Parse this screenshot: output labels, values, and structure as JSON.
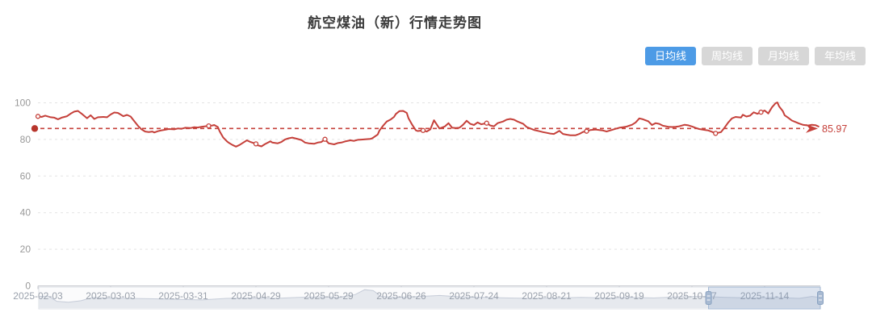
{
  "title": "航空煤油（新）行情走势图",
  "toolbar": {
    "buttons": [
      {
        "label": "日均线",
        "active": true
      },
      {
        "label": "周均线",
        "active": false
      },
      {
        "label": "月均线",
        "active": false
      },
      {
        "label": "年均线",
        "active": false
      }
    ]
  },
  "colors": {
    "series_red": "#c5403a",
    "markline_dot_red": "#b7352c",
    "active_button_blue": "#4d9be6",
    "inactive_button_gray": "#d7d7d7",
    "button_text": "#ffffff",
    "axis_text_gray": "#999999",
    "x_label_gray": "#9aa1ac",
    "grid_line": "#e3e3e3",
    "axis_line": "#c4c6cc",
    "slider_track_fill": "#fbfbfc",
    "slider_track_border": "#dde0e6",
    "slider_shadow_fill": "#e6e9ee",
    "slider_shadow_line": "#c6ccd8",
    "slider_window_fill": "rgba(130,160,200,0.25)",
    "slider_window_border": "#a0b6d2",
    "slider_handle_fill": "#a8bad2",
    "slider_handle_border": "#8aa2c0"
  },
  "chart_data": {
    "type": "line",
    "title": "航空煤油（新）行情走势图",
    "series_name": "日均线",
    "y_ticks": [
      0,
      20,
      40,
      60,
      80,
      100
    ],
    "y_range": [
      0,
      100
    ],
    "grid": true,
    "x_tick_labels": [
      "2025-02-03",
      "2025-03-03",
      "2025-03-31",
      "2025-04-29",
      "2025-05-29",
      "2025-06-26",
      "2025-07-24",
      "2025-08-21",
      "2025-09-19",
      "2025-10-17",
      "2025-11-14"
    ],
    "x_tick_index": [
      0,
      20,
      40,
      60,
      80,
      100,
      120,
      140,
      160,
      180,
      200
    ],
    "x_unit": "trading-day index from 2025-02-03",
    "markline": {
      "value": 85.97,
      "label": "85.97"
    },
    "points": [
      [
        0,
        92.6
      ],
      [
        1,
        92.3
      ],
      [
        2,
        93.0
      ],
      [
        3.5,
        92.1
      ],
      [
        4.5,
        91.9
      ],
      [
        5.5,
        91.0
      ],
      [
        6.5,
        91.9
      ],
      [
        8,
        92.7
      ],
      [
        9,
        94.1
      ],
      [
        10,
        95.2
      ],
      [
        11,
        95.6
      ],
      [
        12,
        94.1
      ],
      [
        13.5,
        91.6
      ],
      [
        14.5,
        93.2
      ],
      [
        15.5,
        91.2
      ],
      [
        16.5,
        92.1
      ],
      [
        18,
        92.3
      ],
      [
        19,
        92.1
      ],
      [
        20,
        93.6
      ],
      [
        21,
        94.7
      ],
      [
        22,
        94.5
      ],
      [
        23.5,
        92.7
      ],
      [
        24.5,
        93.4
      ],
      [
        25.5,
        92.5
      ],
      [
        26.5,
        90.0
      ],
      [
        27.5,
        87.5
      ],
      [
        28.5,
        85.5
      ],
      [
        29.5,
        84.3
      ],
      [
        30.5,
        84.0
      ],
      [
        31.5,
        84.3
      ],
      [
        32,
        83.8
      ],
      [
        33,
        84.5
      ],
      [
        34,
        85.0
      ],
      [
        35,
        85.3
      ],
      [
        36,
        85.7
      ],
      [
        37.5,
        85.5
      ],
      [
        38.5,
        86.0
      ],
      [
        39.5,
        85.8
      ],
      [
        40.5,
        86.4
      ],
      [
        42,
        86.2
      ],
      [
        43,
        86.7
      ],
      [
        44,
        86.5
      ],
      [
        45,
        86.9
      ],
      [
        46,
        87.2
      ],
      [
        47,
        87.4
      ],
      [
        48,
        87.6
      ],
      [
        48.5,
        87.9
      ],
      [
        49.5,
        86.8
      ],
      [
        50,
        84.5
      ],
      [
        51,
        81.0
      ],
      [
        52,
        79.0
      ],
      [
        52.5,
        78.2
      ],
      [
        53.5,
        77.0
      ],
      [
        54.5,
        76.1
      ],
      [
        55.5,
        77.0
      ],
      [
        56.5,
        78.3
      ],
      [
        57.5,
        79.5
      ],
      [
        58.5,
        78.6
      ],
      [
        60,
        77.6
      ],
      [
        60.5,
        76.8
      ],
      [
        61.5,
        76.2
      ],
      [
        62.5,
        77.5
      ],
      [
        64,
        79.0
      ],
      [
        64.5,
        78.3
      ],
      [
        66,
        77.9
      ],
      [
        67,
        78.6
      ],
      [
        68,
        80.0
      ],
      [
        69,
        80.6
      ],
      [
        70,
        81.0
      ],
      [
        71.5,
        80.2
      ],
      [
        72.5,
        79.7
      ],
      [
        73.5,
        78.3
      ],
      [
        74.5,
        77.9
      ],
      [
        76,
        77.6
      ],
      [
        77,
        78.3
      ],
      [
        78,
        78.6
      ],
      [
        79,
        80.1
      ],
      [
        80,
        77.9
      ],
      [
        81.5,
        77.3
      ],
      [
        82.5,
        78.0
      ],
      [
        83.5,
        78.3
      ],
      [
        84.5,
        78.9
      ],
      [
        86,
        79.5
      ],
      [
        87,
        79.2
      ],
      [
        88,
        79.8
      ],
      [
        89,
        79.9
      ],
      [
        90,
        80.1
      ],
      [
        91.5,
        80.3
      ],
      [
        92,
        80.6
      ],
      [
        93.5,
        82.7
      ],
      [
        94,
        84.9
      ],
      [
        95,
        87.5
      ],
      [
        96,
        89.8
      ],
      [
        97,
        90.8
      ],
      [
        98,
        92.3
      ],
      [
        98.5,
        93.9
      ],
      [
        99.5,
        95.5
      ],
      [
        100.5,
        95.6
      ],
      [
        101.5,
        94.5
      ],
      [
        102,
        91.5
      ],
      [
        103,
        88.0
      ],
      [
        104,
        85.0
      ],
      [
        104.5,
        84.6
      ],
      [
        106,
        84.9
      ],
      [
        107,
        84.3
      ],
      [
        108,
        85.5
      ],
      [
        109,
        90.5
      ],
      [
        110,
        87.5
      ],
      [
        110.5,
        86.0
      ],
      [
        112,
        87.1
      ],
      [
        113,
        88.9
      ],
      [
        114,
        86.4
      ],
      [
        115,
        86.2
      ],
      [
        116,
        86.4
      ],
      [
        117,
        88.0
      ],
      [
        118,
        90.2
      ],
      [
        119,
        88.5
      ],
      [
        120,
        87.9
      ],
      [
        121,
        89.3
      ],
      [
        122,
        88.3
      ],
      [
        123.5,
        88.9
      ],
      [
        124.5,
        87.6
      ],
      [
        125.5,
        87.2
      ],
      [
        126.5,
        88.9
      ],
      [
        128,
        89.8
      ],
      [
        129,
        90.8
      ],
      [
        130,
        91.2
      ],
      [
        131,
        90.8
      ],
      [
        132,
        89.8
      ],
      [
        133.5,
        88.6
      ],
      [
        134.5,
        86.8
      ],
      [
        135.5,
        86.0
      ],
      [
        136.5,
        85.2
      ],
      [
        138,
        84.5
      ],
      [
        139,
        84.0
      ],
      [
        140,
        83.6
      ],
      [
        141,
        83.2
      ],
      [
        142,
        83.0
      ],
      [
        143.5,
        84.7
      ],
      [
        144.5,
        83.0
      ],
      [
        145.5,
        82.6
      ],
      [
        146.5,
        82.3
      ],
      [
        148,
        82.3
      ],
      [
        149,
        83.0
      ],
      [
        150,
        84.1
      ],
      [
        151,
        84.5
      ],
      [
        152,
        85.1
      ],
      [
        153.5,
        85.4
      ],
      [
        154.5,
        85.1
      ],
      [
        155.5,
        84.9
      ],
      [
        156.5,
        84.3
      ],
      [
        158,
        85.2
      ],
      [
        159,
        85.8
      ],
      [
        160,
        86.4
      ],
      [
        161,
        86.7
      ],
      [
        162,
        87.0
      ],
      [
        163.5,
        88.0
      ],
      [
        164.5,
        89.3
      ],
      [
        165.5,
        91.5
      ],
      [
        166.5,
        91.0
      ],
      [
        168,
        89.9
      ],
      [
        169,
        87.9
      ],
      [
        170,
        88.9
      ],
      [
        171,
        88.5
      ],
      [
        172,
        87.5
      ],
      [
        173.5,
        86.9
      ],
      [
        174.5,
        86.8
      ],
      [
        175.5,
        86.9
      ],
      [
        176.5,
        87.2
      ],
      [
        178,
        88.0
      ],
      [
        179,
        87.7
      ],
      [
        180,
        87.1
      ],
      [
        181,
        86.3
      ],
      [
        182,
        85.7
      ],
      [
        183.5,
        85.2
      ],
      [
        184.5,
        84.9
      ],
      [
        185.5,
        84.2
      ],
      [
        186.5,
        83.3
      ],
      [
        188,
        84.0
      ],
      [
        189,
        86.5
      ],
      [
        190,
        89.3
      ],
      [
        191,
        91.5
      ],
      [
        192,
        92.3
      ],
      [
        193.5,
        92.0
      ],
      [
        194,
        93.5
      ],
      [
        195,
        92.5
      ],
      [
        196,
        93.0
      ],
      [
        197,
        94.8
      ],
      [
        198,
        94.0
      ],
      [
        199,
        94.9
      ],
      [
        200,
        95.8
      ],
      [
        201,
        94.2
      ],
      [
        202,
        97.5
      ],
      [
        203,
        99.8
      ],
      [
        203.5,
        100.2
      ],
      [
        204,
        98.0
      ],
      [
        205,
        95.5
      ],
      [
        205.5,
        93.2
      ],
      [
        206.5,
        91.8
      ],
      [
        207.5,
        90.3
      ],
      [
        208.5,
        89.5
      ],
      [
        209.5,
        88.7
      ],
      [
        210.5,
        88.0
      ],
      [
        212,
        87.6
      ],
      [
        213,
        88.0
      ],
      [
        214,
        87.8
      ],
      [
        215,
        86.9
      ]
    ],
    "markers": [
      [
        0,
        92.6
      ],
      [
        47,
        87.4
      ],
      [
        60,
        77.6
      ],
      [
        79,
        80.1
      ],
      [
        106,
        84.9
      ],
      [
        123.5,
        88.9
      ],
      [
        151,
        84.5
      ],
      [
        186.5,
        83.3
      ],
      [
        199,
        94.9
      ]
    ]
  },
  "slider": {
    "window": {
      "start": 0.857,
      "end": 1.0
    },
    "shadow": [
      [
        0,
        0.6
      ],
      [
        0.012,
        0.62
      ],
      [
        0.023,
        0.35
      ],
      [
        0.038,
        0.3
      ],
      [
        0.054,
        0.38
      ],
      [
        0.069,
        0.55
      ],
      [
        0.085,
        0.52
      ],
      [
        0.116,
        0.5
      ],
      [
        0.147,
        0.48
      ],
      [
        0.178,
        0.45
      ],
      [
        0.209,
        0.42
      ],
      [
        0.24,
        0.5
      ],
      [
        0.271,
        0.52
      ],
      [
        0.302,
        0.5
      ],
      [
        0.333,
        0.55
      ],
      [
        0.364,
        0.58
      ],
      [
        0.384,
        0.55
      ],
      [
        0.405,
        0.7
      ],
      [
        0.417,
        0.95
      ],
      [
        0.428,
        0.9
      ],
      [
        0.438,
        0.6
      ],
      [
        0.457,
        0.55
      ],
      [
        0.488,
        0.6
      ],
      [
        0.513,
        0.65
      ],
      [
        0.539,
        0.58
      ],
      [
        0.57,
        0.55
      ],
      [
        0.601,
        0.52
      ],
      [
        0.632,
        0.5
      ],
      [
        0.663,
        0.52
      ],
      [
        0.694,
        0.55
      ],
      [
        0.725,
        0.52
      ],
      [
        0.756,
        0.55
      ],
      [
        0.787,
        0.52
      ],
      [
        0.818,
        0.58
      ],
      [
        0.849,
        0.6
      ],
      [
        0.88,
        0.55
      ],
      [
        0.911,
        0.52
      ],
      [
        0.942,
        0.55
      ],
      [
        0.973,
        0.5
      ],
      [
        0.989,
        0.6
      ],
      [
        1,
        0.55
      ]
    ]
  }
}
